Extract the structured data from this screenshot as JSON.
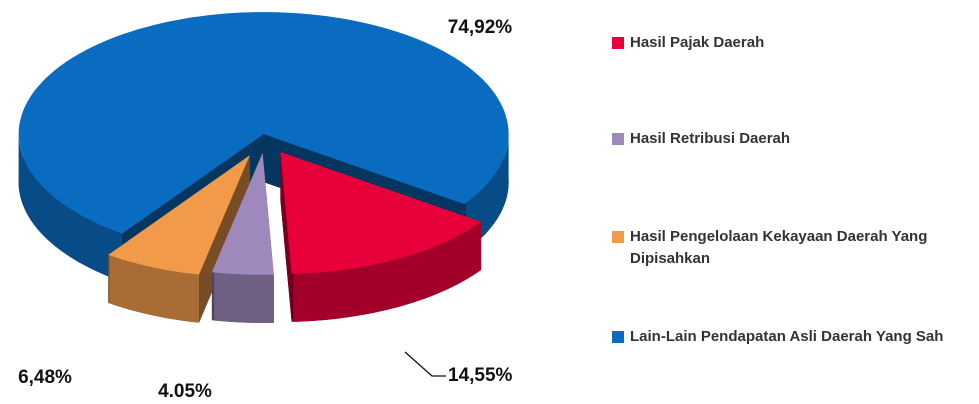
{
  "chart_data": {
    "type": "pie",
    "categories": [
      "Hasil Pajak Daerah",
      "Hasil Retribusi Daerah",
      "Hasil Pengelolaan Kekayaan Daerah Yang Dipisahkan",
      "Lain-Lain Pendapatan Asli Daerah Yang Sah"
    ],
    "values": [
      14.55,
      4.05,
      6.48,
      74.92
    ],
    "value_labels": [
      "14,55%",
      "4.05%",
      "6,48%",
      "74,92%"
    ],
    "colors": [
      "#e8003a",
      "#9f88bb",
      "#f09a4a",
      "#0a6cc0"
    ],
    "legend": "right"
  }
}
